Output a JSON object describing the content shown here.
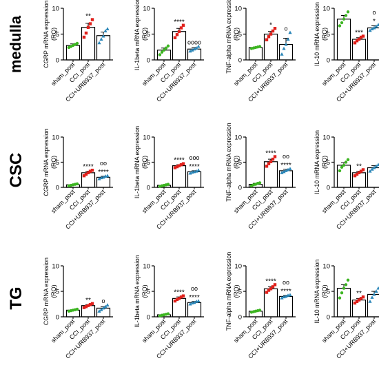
{
  "colors": {
    "sham": "#3cb521",
    "cci": "#e0201b",
    "urb": "#2a86b8",
    "bar": "#000000"
  },
  "rows": [
    "medulla",
    "CSC",
    "TG"
  ],
  "columns": [
    "CGRP mRNA expression",
    "IL-1beta mRNA expression",
    "TNF-alpha mRNA expression",
    "IL-10 mRNA expression"
  ],
  "chart_data": [
    {
      "type": "bar",
      "row": "medulla",
      "ylabel": "CGRP mRNA expression",
      "ylabel2": "(RQ)",
      "ylim": [
        0,
        10
      ],
      "yticks": [
        0,
        5,
        10
      ],
      "categories": [
        "sham_post",
        "CCI_post",
        "CCI+URB937_post"
      ],
      "values": [
        2.8,
        6.3,
        4.7
      ],
      "errors": [
        0.3,
        0.8,
        0.7
      ],
      "points": [
        [
          2.4,
          2.6,
          2.8,
          3.0,
          3.2
        ],
        [
          4.4,
          5.2,
          6.3,
          7.0,
          7.8
        ],
        [
          3.3,
          4.0,
          4.6,
          5.6,
          6.0
        ]
      ],
      "stars": [
        "",
        "**",
        ""
      ],
      "circles": [
        "",
        "",
        ""
      ]
    },
    {
      "type": "bar",
      "row": "medulla",
      "ylabel": "IL-1beta mRNA expression",
      "ylabel2": "(RQ)",
      "ylim": [
        0,
        10
      ],
      "yticks": [
        0,
        5,
        10
      ],
      "categories": [
        "sham_post",
        "CCI_post",
        "CCI+URB937_post"
      ],
      "values": [
        1.9,
        5.5,
        2.1
      ],
      "errors": [
        0.4,
        0.6,
        0.3
      ],
      "points": [
        [
          1.0,
          1.5,
          1.9,
          2.3,
          2.7
        ],
        [
          4.3,
          4.9,
          5.5,
          6.2,
          6.7
        ],
        [
          1.7,
          1.9,
          2.1,
          2.3,
          2.6
        ]
      ],
      "stars": [
        "",
        "****",
        ""
      ],
      "circles": [
        "",
        "",
        "oooo"
      ]
    },
    {
      "type": "bar",
      "row": "medulla",
      "ylabel": "TNF-alpha mRNA expression",
      "ylabel2": "(RQ)",
      "ylim": [
        0,
        10
      ],
      "yticks": [
        0,
        5,
        10
      ],
      "categories": [
        "sham_post",
        "CCI_post",
        "CCI+URB937_post"
      ],
      "values": [
        2.4,
        5.0,
        3.0
      ],
      "errors": [
        0.1,
        0.5,
        1.2
      ],
      "points": [
        [
          2.2,
          2.3,
          2.4,
          2.5,
          2.6
        ],
        [
          3.9,
          4.5,
          5.0,
          5.6,
          6.1
        ],
        [
          1.1,
          2.2,
          3.0,
          4.0,
          5.3
        ]
      ],
      "stars": [
        "",
        "*",
        ""
      ],
      "circles": [
        "",
        "",
        "o"
      ]
    },
    {
      "type": "bar",
      "row": "medulla",
      "ylabel": "IL-10 mRNA expression",
      "ylabel2": "(RQ)",
      "ylim": [
        0,
        10
      ],
      "yticks": [
        0,
        5,
        10
      ],
      "categories": [
        "sham_post",
        "CCI_post",
        "CCI+URB937_post"
      ],
      "values": [
        7.9,
        4.0,
        6.2
      ],
      "errors": [
        0.7,
        0.3,
        0.4
      ],
      "points": [
        [
          6.6,
          7.2,
          7.9,
          8.6,
          9.3
        ],
        [
          3.3,
          3.7,
          4.0,
          4.4,
          4.6
        ],
        [
          5.7,
          6.0,
          6.2,
          6.5,
          6.8
        ]
      ],
      "stars": [
        "",
        "***",
        "*"
      ],
      "circles": [
        "",
        "",
        "o"
      ]
    },
    {
      "type": "bar",
      "row": "CSC",
      "ylabel": "CGRP mRNA expression",
      "ylabel2": "(RQ)",
      "ylim": [
        0,
        10
      ],
      "yticks": [
        0,
        5,
        10
      ],
      "categories": [
        "sham_post",
        "CCI_post",
        "CCI+URB937_post"
      ],
      "values": [
        0.5,
        2.9,
        2.0
      ],
      "errors": [
        0.1,
        0.3,
        0.2
      ],
      "points": [
        [
          0.3,
          0.4,
          0.5,
          0.6,
          0.7
        ],
        [
          2.3,
          2.6,
          2.9,
          3.2,
          3.4
        ],
        [
          1.7,
          1.9,
          2.0,
          2.2,
          2.3
        ]
      ],
      "stars": [
        "",
        "****",
        "****"
      ],
      "circles": [
        "",
        "",
        "oo"
      ]
    },
    {
      "type": "bar",
      "row": "CSC",
      "ylabel": "IL-1beta mRNA expression",
      "ylabel2": "(RQ)",
      "ylim": [
        0,
        10
      ],
      "yticks": [
        0,
        5,
        10
      ],
      "categories": [
        "sham_post",
        "CCI_post",
        "CCI+URB937_post"
      ],
      "values": [
        0.4,
        4.3,
        3.1
      ],
      "errors": [
        0.1,
        0.2,
        0.2
      ],
      "points": [
        [
          0.2,
          0.3,
          0.4,
          0.5,
          0.6
        ],
        [
          3.9,
          4.1,
          4.3,
          4.5,
          4.7
        ],
        [
          2.8,
          3.0,
          3.1,
          3.2,
          3.4
        ]
      ],
      "stars": [
        "",
        "****",
        "****"
      ],
      "circles": [
        "",
        "",
        "ooo"
      ]
    },
    {
      "type": "bar",
      "row": "CSC",
      "ylabel": "TNF-alpha mRNA expression",
      "ylabel2": "(RQ)",
      "ylim": [
        0,
        10
      ],
      "yticks": [
        0,
        5,
        10
      ],
      "categories": [
        "sham_post",
        "CCI_post",
        "CCI+URB937_post"
      ],
      "values": [
        0.6,
        5.1,
        3.3
      ],
      "errors": [
        0.2,
        0.5,
        0.3
      ],
      "points": [
        [
          0.3,
          0.5,
          0.6,
          0.8,
          0.9
        ],
        [
          4.2,
          4.7,
          5.1,
          5.6,
          6.1
        ],
        [
          2.9,
          3.1,
          3.3,
          3.5,
          3.7
        ]
      ],
      "stars": [
        "",
        "****",
        "****"
      ],
      "circles": [
        "",
        "",
        "oo"
      ]
    },
    {
      "type": "bar",
      "row": "CSC",
      "ylabel": "IL-10 mRNA expression",
      "ylabel2": "(RQ)",
      "ylim": [
        0,
        10
      ],
      "yticks": [
        0,
        5,
        10
      ],
      "categories": [
        "sham_post",
        "CCI_post",
        "CCI+URB937_post"
      ],
      "values": [
        4.4,
        2.9,
        3.9
      ],
      "errors": [
        0.5,
        0.3,
        0.4
      ],
      "points": [
        [
          3.3,
          4.0,
          4.4,
          5.0,
          5.5
        ],
        [
          2.3,
          2.6,
          2.9,
          3.2,
          3.5
        ],
        [
          3.2,
          3.6,
          3.9,
          4.2,
          4.5
        ]
      ],
      "stars": [
        "",
        "**",
        ""
      ],
      "circles": [
        "",
        "",
        ""
      ]
    },
    {
      "type": "bar",
      "row": "TG",
      "ylabel": "CGRP mRNA expression",
      "ylabel2": "(RQ)",
      "ylim": [
        0,
        10
      ],
      "yticks": [
        0,
        5,
        10
      ],
      "categories": [
        "sham_post",
        "CCI_post",
        "CCI+URB937_post"
      ],
      "values": [
        1.3,
        2.2,
        1.7
      ],
      "errors": [
        0.1,
        0.2,
        0.3
      ],
      "points": [
        [
          1.1,
          1.2,
          1.3,
          1.4,
          1.5
        ],
        [
          1.8,
          2.0,
          2.2,
          2.4,
          2.6
        ],
        [
          1.1,
          1.4,
          1.7,
          2.0,
          2.3
        ]
      ],
      "stars": [
        "",
        "**",
        ""
      ],
      "circles": [
        "",
        "",
        "o"
      ]
    },
    {
      "type": "bar",
      "row": "TG",
      "ylabel": "IL-1beta mRNA expression",
      "ylabel2": "(RQ)",
      "ylim": [
        0,
        10
      ],
      "yticks": [
        0,
        5,
        10
      ],
      "categories": [
        "sham_post",
        "CCI_post",
        "CCI+URB937_post"
      ],
      "values": [
        0.4,
        3.6,
        2.8
      ],
      "errors": [
        0.1,
        0.3,
        0.2
      ],
      "points": [
        [
          0.2,
          0.3,
          0.4,
          0.5,
          0.6
        ],
        [
          3.1,
          3.4,
          3.6,
          3.9,
          4.1
        ],
        [
          2.5,
          2.7,
          2.8,
          3.0,
          3.1
        ]
      ],
      "stars": [
        "",
        "****",
        "****"
      ],
      "circles": [
        "",
        "",
        "oo"
      ]
    },
    {
      "type": "bar",
      "row": "TG",
      "ylabel": "TNF-alpha mRNA expression",
      "ylabel2": "(RQ)",
      "ylim": [
        0,
        10
      ],
      "yticks": [
        0,
        5,
        10
      ],
      "categories": [
        "sham_post",
        "CCI_post",
        "CCI+URB937_post"
      ],
      "values": [
        1.1,
        5.5,
        4.0
      ],
      "errors": [
        0.1,
        0.4,
        0.2
      ],
      "points": [
        [
          0.9,
          1.0,
          1.1,
          1.2,
          1.3
        ],
        [
          4.8,
          5.2,
          5.5,
          5.9,
          6.3
        ],
        [
          3.7,
          3.9,
          4.0,
          4.2,
          4.3
        ]
      ],
      "stars": [
        "",
        "****",
        "****"
      ],
      "circles": [
        "",
        "",
        "oo"
      ]
    },
    {
      "type": "bar",
      "row": "TG",
      "ylabel": "IL-10 mRNA expression",
      "ylabel2": "(RQ)",
      "ylim": [
        0,
        10
      ],
      "yticks": [
        0,
        5,
        10
      ],
      "categories": [
        "sham_post",
        "CCI_post",
        "CCI+URB937_post"
      ],
      "values": [
        5.6,
        3.3,
        4.4
      ],
      "errors": [
        0.7,
        0.3,
        0.6
      ],
      "points": [
        [
          3.7,
          4.7,
          5.6,
          6.3,
          7.2
        ],
        [
          2.7,
          3.0,
          3.3,
          3.6,
          3.9
        ],
        [
          3.0,
          3.8,
          4.4,
          5.0,
          5.6
        ]
      ],
      "stars": [
        "",
        "**",
        ""
      ],
      "circles": [
        "",
        "",
        ""
      ]
    }
  ]
}
